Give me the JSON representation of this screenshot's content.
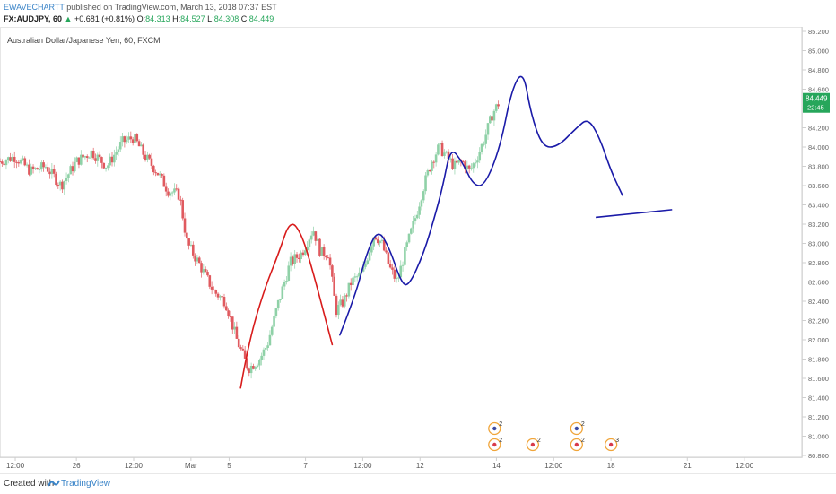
{
  "header": {
    "username": "EWAVECHARTT",
    "published_text": "published on TradingView.com, March 13, 2018 07:37 EST",
    "symbol": "FX:AUDJPY, 60",
    "change_arrow": "▲",
    "change": "+0.681 (+0.81%)",
    "open_label": "O:",
    "open": "84.313",
    "high_label": "H:",
    "high": "84.527",
    "low_label": "L:",
    "low": "84.308",
    "close_label": "C:",
    "close": "84.449",
    "last_price": "84.449"
  },
  "chart_title": "Australian Dollar/Japanese Yen, 60, FXCM",
  "footer": {
    "created_with": "Created with",
    "brand": "TradingView"
  },
  "colors": {
    "up": "#26a65b",
    "down": "#e0474c",
    "candle_up": "#8fd1a7",
    "candle_down": "#e05a5f",
    "red_line": "#d81b1b",
    "blue_line": "#1a1aa8"
  },
  "chart_data": {
    "type": "candlestick",
    "title": "Australian Dollar/Japanese Yen, 60, FXCM",
    "x_ticks": [
      "12:00",
      "26",
      "12:00",
      "Mar",
      "5",
      "7",
      "12:00",
      "12",
      "14",
      "12:00",
      "18",
      "21",
      "12:00"
    ],
    "x_tick_pos": [
      -0.6,
      1.0,
      2.5,
      4.0,
      5.0,
      7.0,
      8.5,
      10.0,
      12.0,
      13.5,
      15.0,
      17.0,
      18.5
    ],
    "y_ticks": [
      "85.200",
      "85.000",
      "84.800",
      "84.600",
      "84.400",
      "84.200",
      "84.000",
      "83.800",
      "83.600",
      "83.400",
      "83.200",
      "83.000",
      "82.800",
      "82.600",
      "82.400",
      "82.200",
      "82.000",
      "81.800",
      "81.600",
      "81.400",
      "81.200",
      "81.000",
      "80.800"
    ],
    "y_range": [
      80.8,
      85.2
    ],
    "x_range": [
      -1.0,
      20.0
    ],
    "price_label": "84.449",
    "countdown_label": "22:45",
    "path_keypoints": [
      [
        -1.0,
        83.85
      ],
      [
        -0.6,
        83.9
      ],
      [
        -0.2,
        83.75
      ],
      [
        0.2,
        83.8
      ],
      [
        0.6,
        83.6
      ],
      [
        1.0,
        83.85
      ],
      [
        1.4,
        83.95
      ],
      [
        1.8,
        83.8
      ],
      [
        2.2,
        84.05
      ],
      [
        2.5,
        84.1
      ],
      [
        2.8,
        83.9
      ],
      [
        3.1,
        83.75
      ],
      [
        3.4,
        83.55
      ],
      [
        3.7,
        83.5
      ],
      [
        3.9,
        83.0
      ],
      [
        4.2,
        82.8
      ],
      [
        4.6,
        82.5
      ],
      [
        4.9,
        82.4
      ],
      [
        5.2,
        82.0
      ],
      [
        5.5,
        81.7
      ],
      [
        5.8,
        81.8
      ],
      [
        6.0,
        81.95
      ],
      [
        6.3,
        82.4
      ],
      [
        6.6,
        82.8
      ],
      [
        6.9,
        82.9
      ],
      [
        7.2,
        83.15
      ],
      [
        7.4,
        82.9
      ],
      [
        7.6,
        82.9
      ],
      [
        7.8,
        82.3
      ],
      [
        8.0,
        82.4
      ],
      [
        8.2,
        82.6
      ],
      [
        8.5,
        82.7
      ],
      [
        8.8,
        83.1
      ],
      [
        9.0,
        83.0
      ],
      [
        9.2,
        82.75
      ],
      [
        9.4,
        82.6
      ],
      [
        9.6,
        82.9
      ],
      [
        9.9,
        83.3
      ],
      [
        10.1,
        83.6
      ],
      [
        10.3,
        83.85
      ],
      [
        10.5,
        84.0
      ],
      [
        10.7,
        83.9
      ],
      [
        10.9,
        83.8
      ],
      [
        11.1,
        83.85
      ],
      [
        11.3,
        83.75
      ],
      [
        11.5,
        83.9
      ],
      [
        11.7,
        84.1
      ],
      [
        11.9,
        84.35
      ],
      [
        12.05,
        84.449
      ]
    ],
    "red_drawing": [
      [
        5.3,
        81.5
      ],
      [
        5.5,
        81.95
      ],
      [
        5.9,
        82.5
      ],
      [
        6.3,
        82.9
      ],
      [
        6.6,
        83.25
      ],
      [
        6.9,
        83.1
      ],
      [
        7.2,
        82.7
      ],
      [
        7.5,
        82.25
      ],
      [
        7.7,
        81.95
      ]
    ],
    "blue_drawing_1": [
      [
        7.9,
        82.05
      ],
      [
        8.3,
        82.45
      ],
      [
        8.6,
        82.9
      ],
      [
        8.9,
        83.15
      ],
      [
        9.2,
        82.95
      ],
      [
        9.5,
        82.6
      ],
      [
        9.7,
        82.55
      ],
      [
        10.1,
        82.9
      ],
      [
        10.4,
        83.3
      ],
      [
        10.6,
        83.6
      ],
      [
        10.8,
        84.0
      ],
      [
        11.1,
        83.85
      ],
      [
        11.4,
        83.6
      ],
      [
        11.7,
        83.6
      ],
      [
        12.1,
        84.0
      ],
      [
        12.4,
        84.6
      ],
      [
        12.7,
        84.8
      ],
      [
        12.9,
        84.35
      ],
      [
        13.2,
        84.0
      ],
      [
        13.6,
        84.0
      ],
      [
        14.1,
        84.2
      ],
      [
        14.4,
        84.3
      ],
      [
        14.7,
        84.1
      ],
      [
        15.0,
        83.75
      ],
      [
        15.3,
        83.5
      ]
    ],
    "blue_drawing_2": [
      [
        14.6,
        83.27
      ],
      [
        16.6,
        83.35
      ]
    ],
    "events": [
      {
        "x": 11.95,
        "label": "2",
        "row": 0
      },
      {
        "x": 11.95,
        "label": "2",
        "row": 1
      },
      {
        "x": 12.95,
        "label": "2",
        "row": 1
      },
      {
        "x": 14.1,
        "label": "2",
        "row": 0
      },
      {
        "x": 14.1,
        "label": "2",
        "row": 1
      },
      {
        "x": 15.0,
        "label": "3",
        "row": 1
      }
    ]
  }
}
